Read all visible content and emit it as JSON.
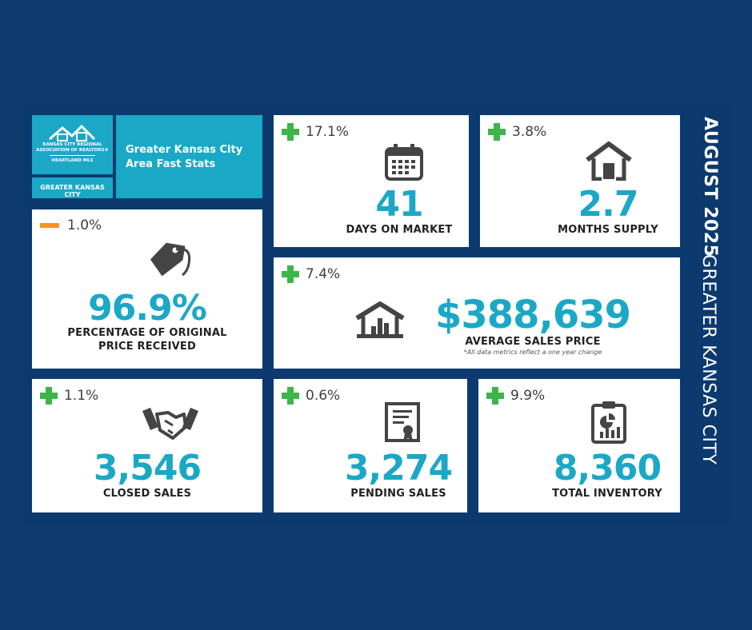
{
  "header": {
    "logo_line1": "KANSAS CITY REGIONAL",
    "logo_line2": "ASSOCIATION OF REALTORS®",
    "logo_line3": "HEARTLAND MLS",
    "region_tab": "GREATER KANSAS CITY",
    "title_line1": "Greater Kansas City",
    "title_line2": "Area Fast Stats"
  },
  "side": {
    "period": "AUGUST 2025",
    "region": "GREATER KANSAS CITY"
  },
  "stats": {
    "days_on_market": {
      "change": "17.1%",
      "direction": "up",
      "value": "41",
      "label": "DAYS ON MARKET",
      "icon": "calendar-icon"
    },
    "months_supply": {
      "change": "3.8%",
      "direction": "up",
      "value": "2.7",
      "label": "MONTHS SUPPLY",
      "icon": "house-icon"
    },
    "pct_original_price": {
      "change": "1.0%",
      "direction": "down",
      "value": "96.9%",
      "label_line1": "PERCENTAGE OF ORIGINAL",
      "label_line2": "PRICE RECEIVED",
      "icon": "price-tag-icon"
    },
    "avg_sales_price": {
      "change": "7.4%",
      "direction": "up",
      "value": "$388,639",
      "label": "AVERAGE SALES PRICE",
      "note": "*All data metrics reflect a one year change",
      "icon": "house-chart-icon"
    },
    "closed_sales": {
      "change": "1.1%",
      "direction": "up",
      "value": "3,546",
      "label": "CLOSED SALES",
      "icon": "handshake-icon"
    },
    "pending_sales": {
      "change": "0.6%",
      "direction": "up",
      "value": "3,274",
      "label": "PENDING SALES",
      "icon": "certificate-icon"
    },
    "total_inventory": {
      "change": "9.9%",
      "direction": "up",
      "value": "8,360",
      "label": "TOTAL INVENTORY",
      "icon": "clipboard-chart-icon"
    }
  },
  "colors": {
    "background": "#0e3a6e",
    "accent_teal": "#1aa8c6",
    "increase_green": "#3db54a",
    "decrease_orange": "#f7941d",
    "icon_gray": "#444444"
  }
}
